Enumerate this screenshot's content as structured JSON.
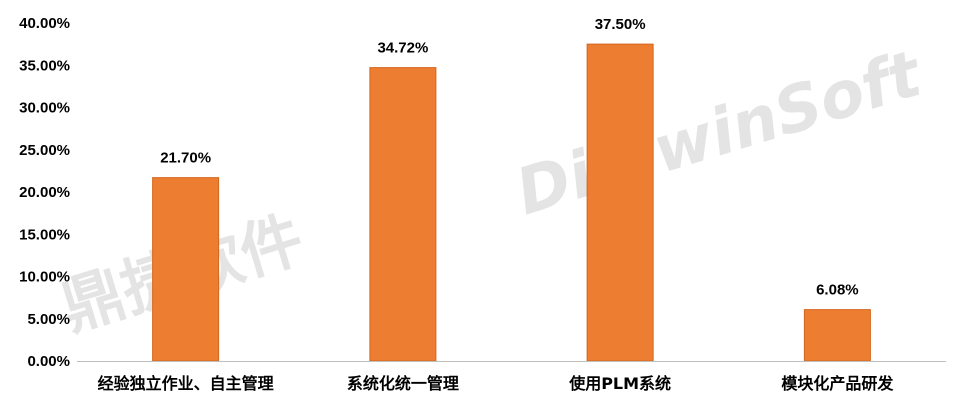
{
  "chart_data": {
    "type": "bar",
    "categories": [
      "经验独立作业、自主管理",
      "系统化统一管理",
      "使用PLM系统",
      "模块化产品研发"
    ],
    "values": [
      21.7,
      34.72,
      37.5,
      6.08
    ],
    "data_labels": [
      "21.70%",
      "34.72%",
      "37.50%",
      "6.08%"
    ],
    "y_ticks": [
      0,
      5,
      10,
      15,
      20,
      25,
      30,
      35,
      40
    ],
    "y_tick_labels": [
      "0.00%",
      "5.00%",
      "10.00%",
      "15.00%",
      "20.00%",
      "25.00%",
      "30.00%",
      "35.00%",
      "40.00%"
    ],
    "ylim": [
      0,
      40
    ],
    "title": "",
    "xlabel": "",
    "ylabel": "",
    "grid": false,
    "legend": "none",
    "bar_color": "#ed7d31",
    "bar_edge_color": "#d4661c"
  },
  "watermark": {
    "cn": "鼎捷软件",
    "en": "DigiwinSoft"
  }
}
